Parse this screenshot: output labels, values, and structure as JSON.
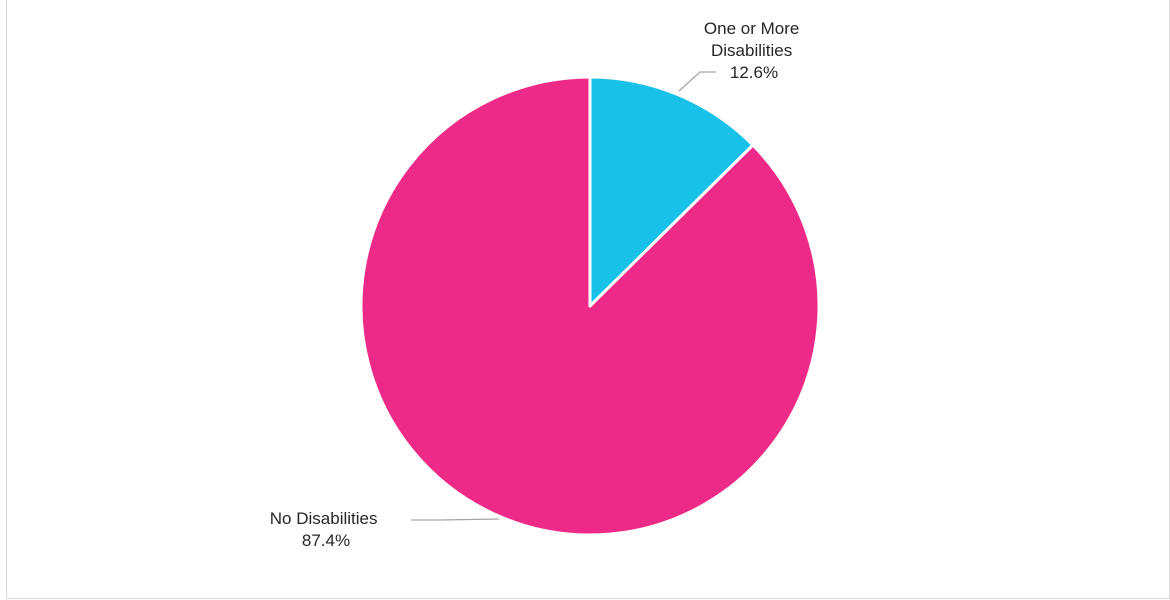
{
  "chart_data": {
    "type": "pie",
    "title": "",
    "start_angle_deg": 0,
    "direction": "clockwise",
    "legend": "none",
    "slices": [
      {
        "label_lines": [
          "One or More",
          "Disabilities"
        ],
        "percent_text": "12.6%",
        "value": 12.6,
        "color": "#17c1e8"
      },
      {
        "label_lines": [
          "No Disabilities"
        ],
        "percent_text": "87.4%",
        "value": 87.4,
        "color": "#ee2a88"
      }
    ]
  }
}
